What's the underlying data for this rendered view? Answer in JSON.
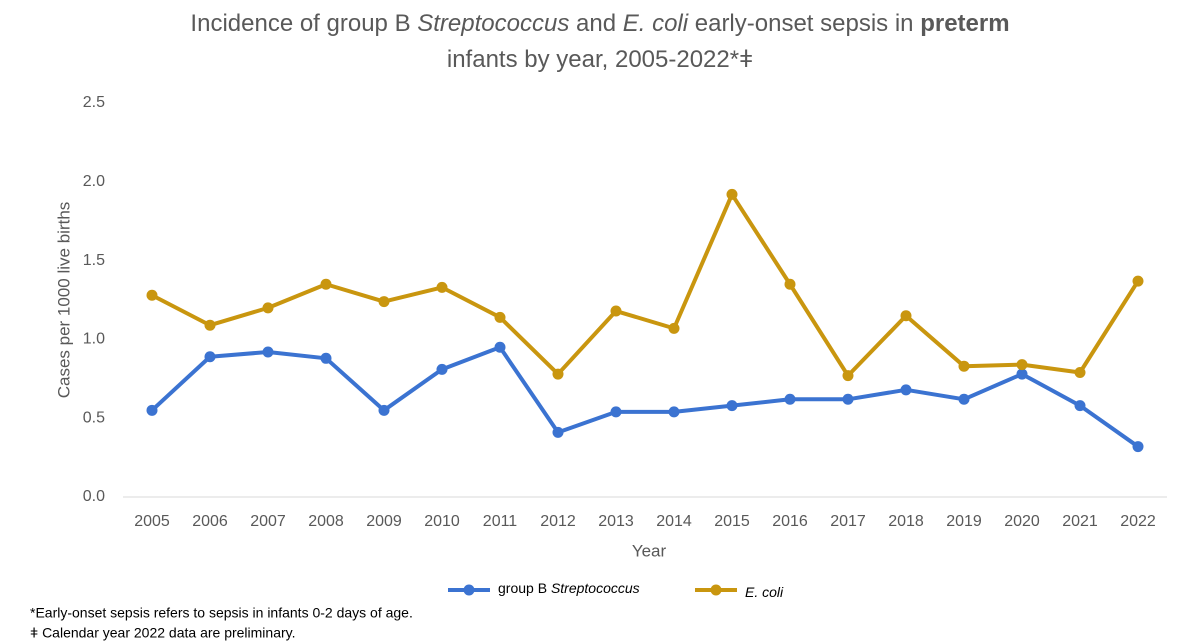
{
  "chart_data": {
    "type": "line",
    "title": [
      [
        {
          "text": "Incidence of group B ",
          "style": "normal"
        },
        {
          "text": "Streptococcus",
          "style": "italic"
        },
        {
          "text": " and ",
          "style": "normal"
        },
        {
          "text": "E. coli",
          "style": "italic"
        },
        {
          "text": " early-onset sepsis in ",
          "style": "normal"
        },
        {
          "text": "preterm",
          "style": "bold"
        }
      ],
      [
        {
          "text": "infants by year, 2005-2022*ǂ",
          "style": "normal"
        }
      ]
    ],
    "x_label": "Year",
    "y_label": "Cases per 1000 live births",
    "categories": [
      "2005",
      "2006",
      "2007",
      "2008",
      "2009",
      "2010",
      "2011",
      "2012",
      "2013",
      "2014",
      "2015",
      "2016",
      "2017",
      "2018",
      "2019",
      "2020",
      "2021",
      "2022"
    ],
    "series": [
      {
        "name": [
          {
            "text": "group B ",
            "style": "normal"
          },
          {
            "text": "Streptococcus",
            "style": "italic"
          }
        ],
        "color": "#3b73d1",
        "values": [
          0.55,
          0.89,
          0.92,
          0.88,
          0.55,
          0.81,
          0.95,
          0.41,
          0.54,
          0.54,
          0.58,
          0.62,
          0.62,
          0.68,
          0.62,
          0.78,
          0.58,
          0.32
        ]
      },
      {
        "name": [
          {
            "text": "E. coli",
            "style": "italic"
          }
        ],
        "color": "#c9960f",
        "values": [
          1.28,
          1.09,
          1.2,
          1.35,
          1.24,
          1.33,
          1.14,
          0.78,
          1.18,
          1.07,
          1.92,
          1.35,
          0.77,
          1.15,
          0.83,
          0.84,
          0.79,
          1.37
        ]
      }
    ],
    "ylim": [
      0,
      2.5
    ],
    "yticks": [
      {
        "value": 0,
        "label": "0.0"
      },
      0.5,
      {
        "value": 1,
        "label": "1.0"
      },
      1.5,
      {
        "value": 2,
        "label": "2.0"
      },
      2.5
    ],
    "grid": false,
    "legend": "bottom",
    "footnotes": [
      "*Early-onset sepsis refers to sepsis in infants 0-2 days of age.",
      "ǂ Calendar year 2022 data are preliminary."
    ]
  }
}
